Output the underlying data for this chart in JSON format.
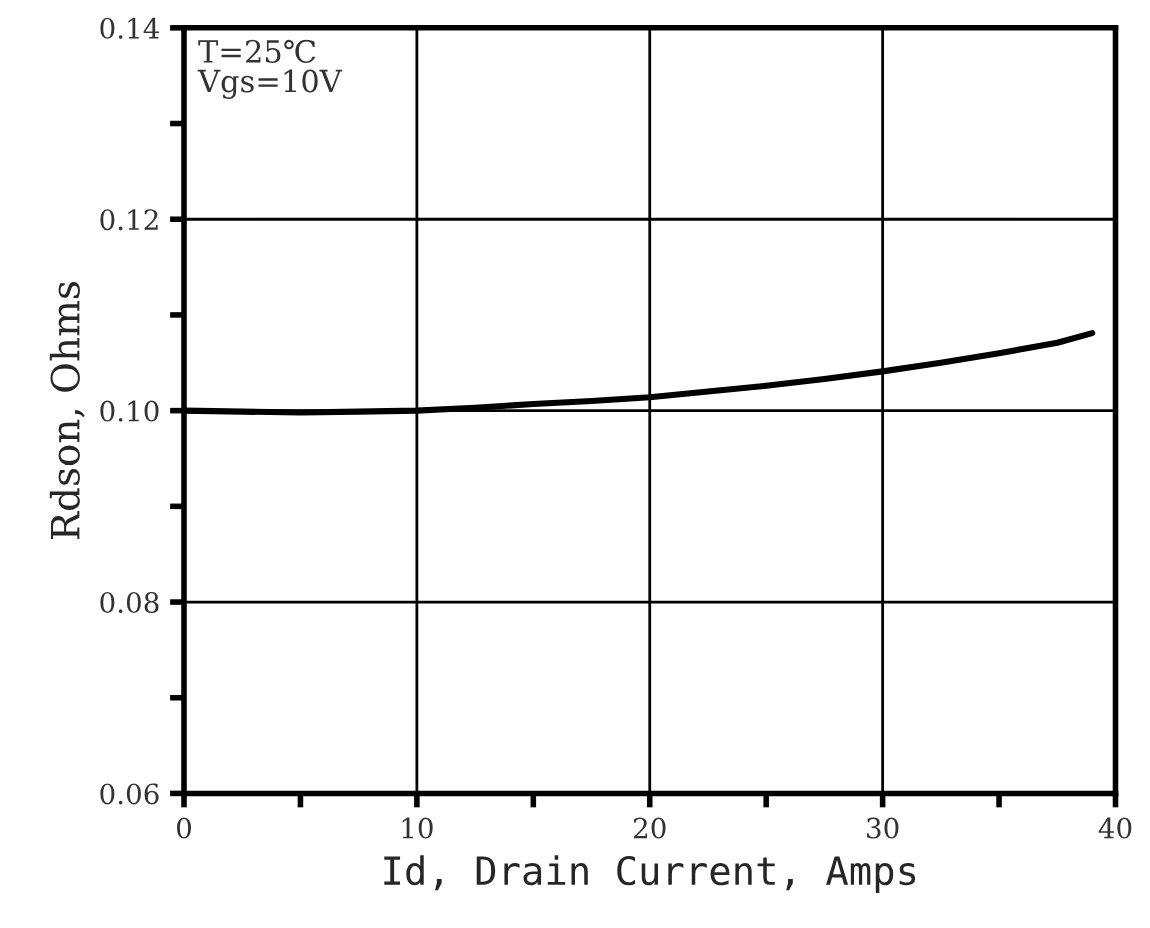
{
  "chart_data": {
    "type": "line",
    "xlabel": "Id, Drain Current, Amps",
    "ylabel": "Rdson, Ohms",
    "annotations": [
      "T=25℃\nVgs=10V"
    ],
    "x": [
      0,
      2.5,
      5,
      7.5,
      10,
      12.5,
      15,
      17.5,
      20,
      22.5,
      25,
      27.5,
      30,
      32.5,
      35,
      37.5,
      39
    ],
    "series": [
      {
        "color": "#000000",
        "values": [
          0.1,
          0.0999,
          0.0998,
          0.0999,
          0.1,
          0.1003,
          0.1007,
          0.101,
          0.1014,
          0.102,
          0.1026,
          0.1033,
          0.1041,
          0.105,
          0.106,
          0.1071,
          0.1081
        ]
      }
    ],
    "xlim": [
      0,
      40
    ],
    "ylim": [
      0.06,
      0.14
    ],
    "xticks": [
      {
        "value": 0,
        "label": "0"
      },
      {
        "value": 5,
        "label": null
      },
      {
        "value": 10,
        "label": "10"
      },
      {
        "value": 15,
        "label": null
      },
      {
        "value": 20,
        "label": "20"
      },
      {
        "value": 25,
        "label": null
      },
      {
        "value": 30,
        "label": "30"
      },
      {
        "value": 35,
        "label": null
      },
      {
        "value": 40,
        "label": "40"
      }
    ],
    "yticks": [
      {
        "value": 0.06,
        "label": "0.06"
      },
      {
        "value": 0.07,
        "label": null
      },
      {
        "value": 0.08,
        "label": "0.08"
      },
      {
        "value": 0.09,
        "label": null
      },
      {
        "value": 0.1,
        "label": "0.10"
      },
      {
        "value": 0.11,
        "label": null
      },
      {
        "value": 0.12,
        "label": "0.12"
      },
      {
        "value": 0.13,
        "label": null
      },
      {
        "value": 0.14,
        "label": "0.14"
      }
    ],
    "grid": true,
    "line_style": "solid",
    "marker": "none"
  }
}
